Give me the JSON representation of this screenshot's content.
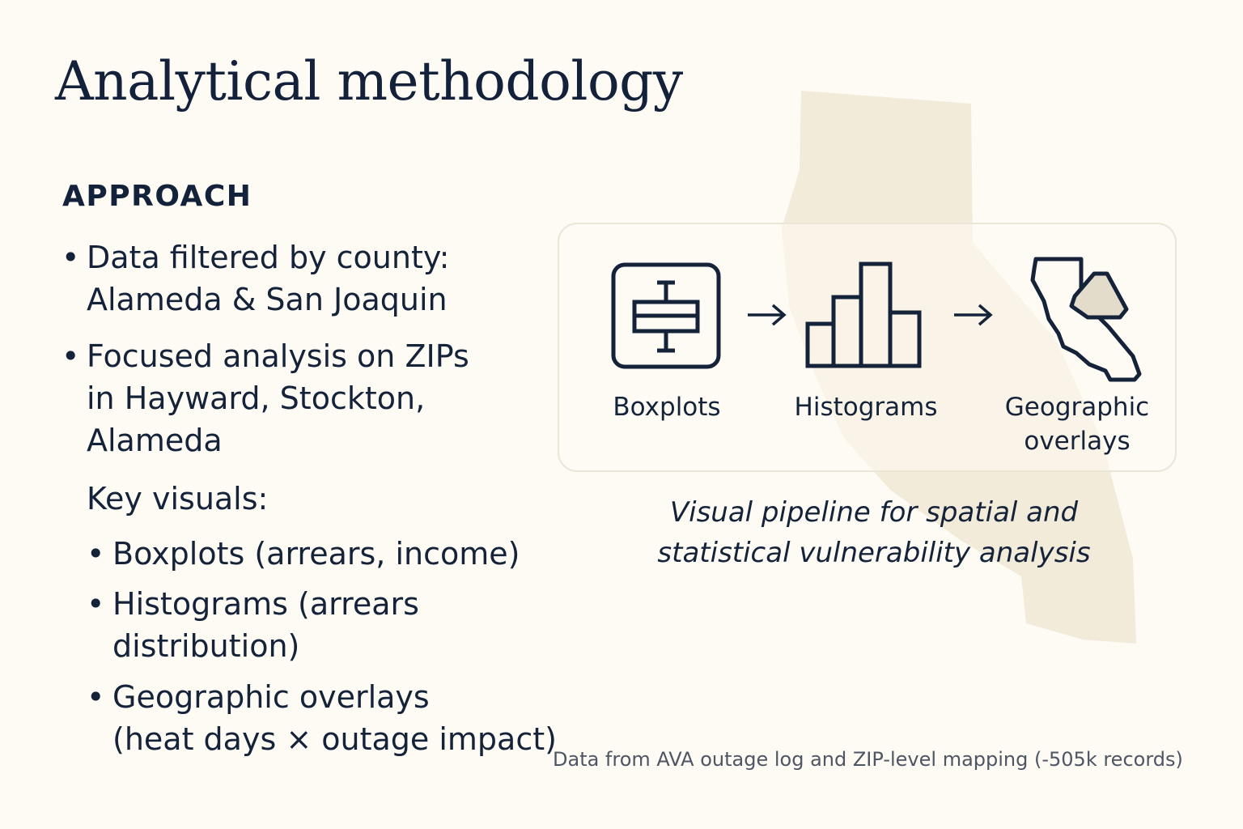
{
  "title": "Analytical methodology",
  "approach": {
    "heading": "APPROACH",
    "bullets": [
      "Data filtered by county:\nAlameda & San Joaquin",
      "Focused analysis on ZIPs\nin Hayward, Stockton,\nAlameda"
    ],
    "key_visuals_label": "Key visuals:",
    "key_visuals": [
      "Boxplots (arrears, income)",
      "Histograms (arrears\ndistribution)",
      "Geographic overlays\n(heat days × outage impact)"
    ]
  },
  "pipeline": {
    "steps": [
      {
        "label": "Boxplots",
        "icon": "boxplot-icon"
      },
      {
        "label": "Histograms",
        "icon": "histogram-icon"
      },
      {
        "label": "Geographic\noverlays",
        "icon": "california-map-icon"
      }
    ],
    "connector_icon": "arrow-right-icon",
    "caption": "Visual pipeline for spatial and\nstatistical vulnerability analysis"
  },
  "footnote": "Data from AVA outage log and ZIP-level mapping (-505k records)",
  "colors": {
    "background": "#fdfbf3",
    "text": "#15233a",
    "map_shape": "#efe6d2",
    "icon_fill": "#e4dccb"
  }
}
